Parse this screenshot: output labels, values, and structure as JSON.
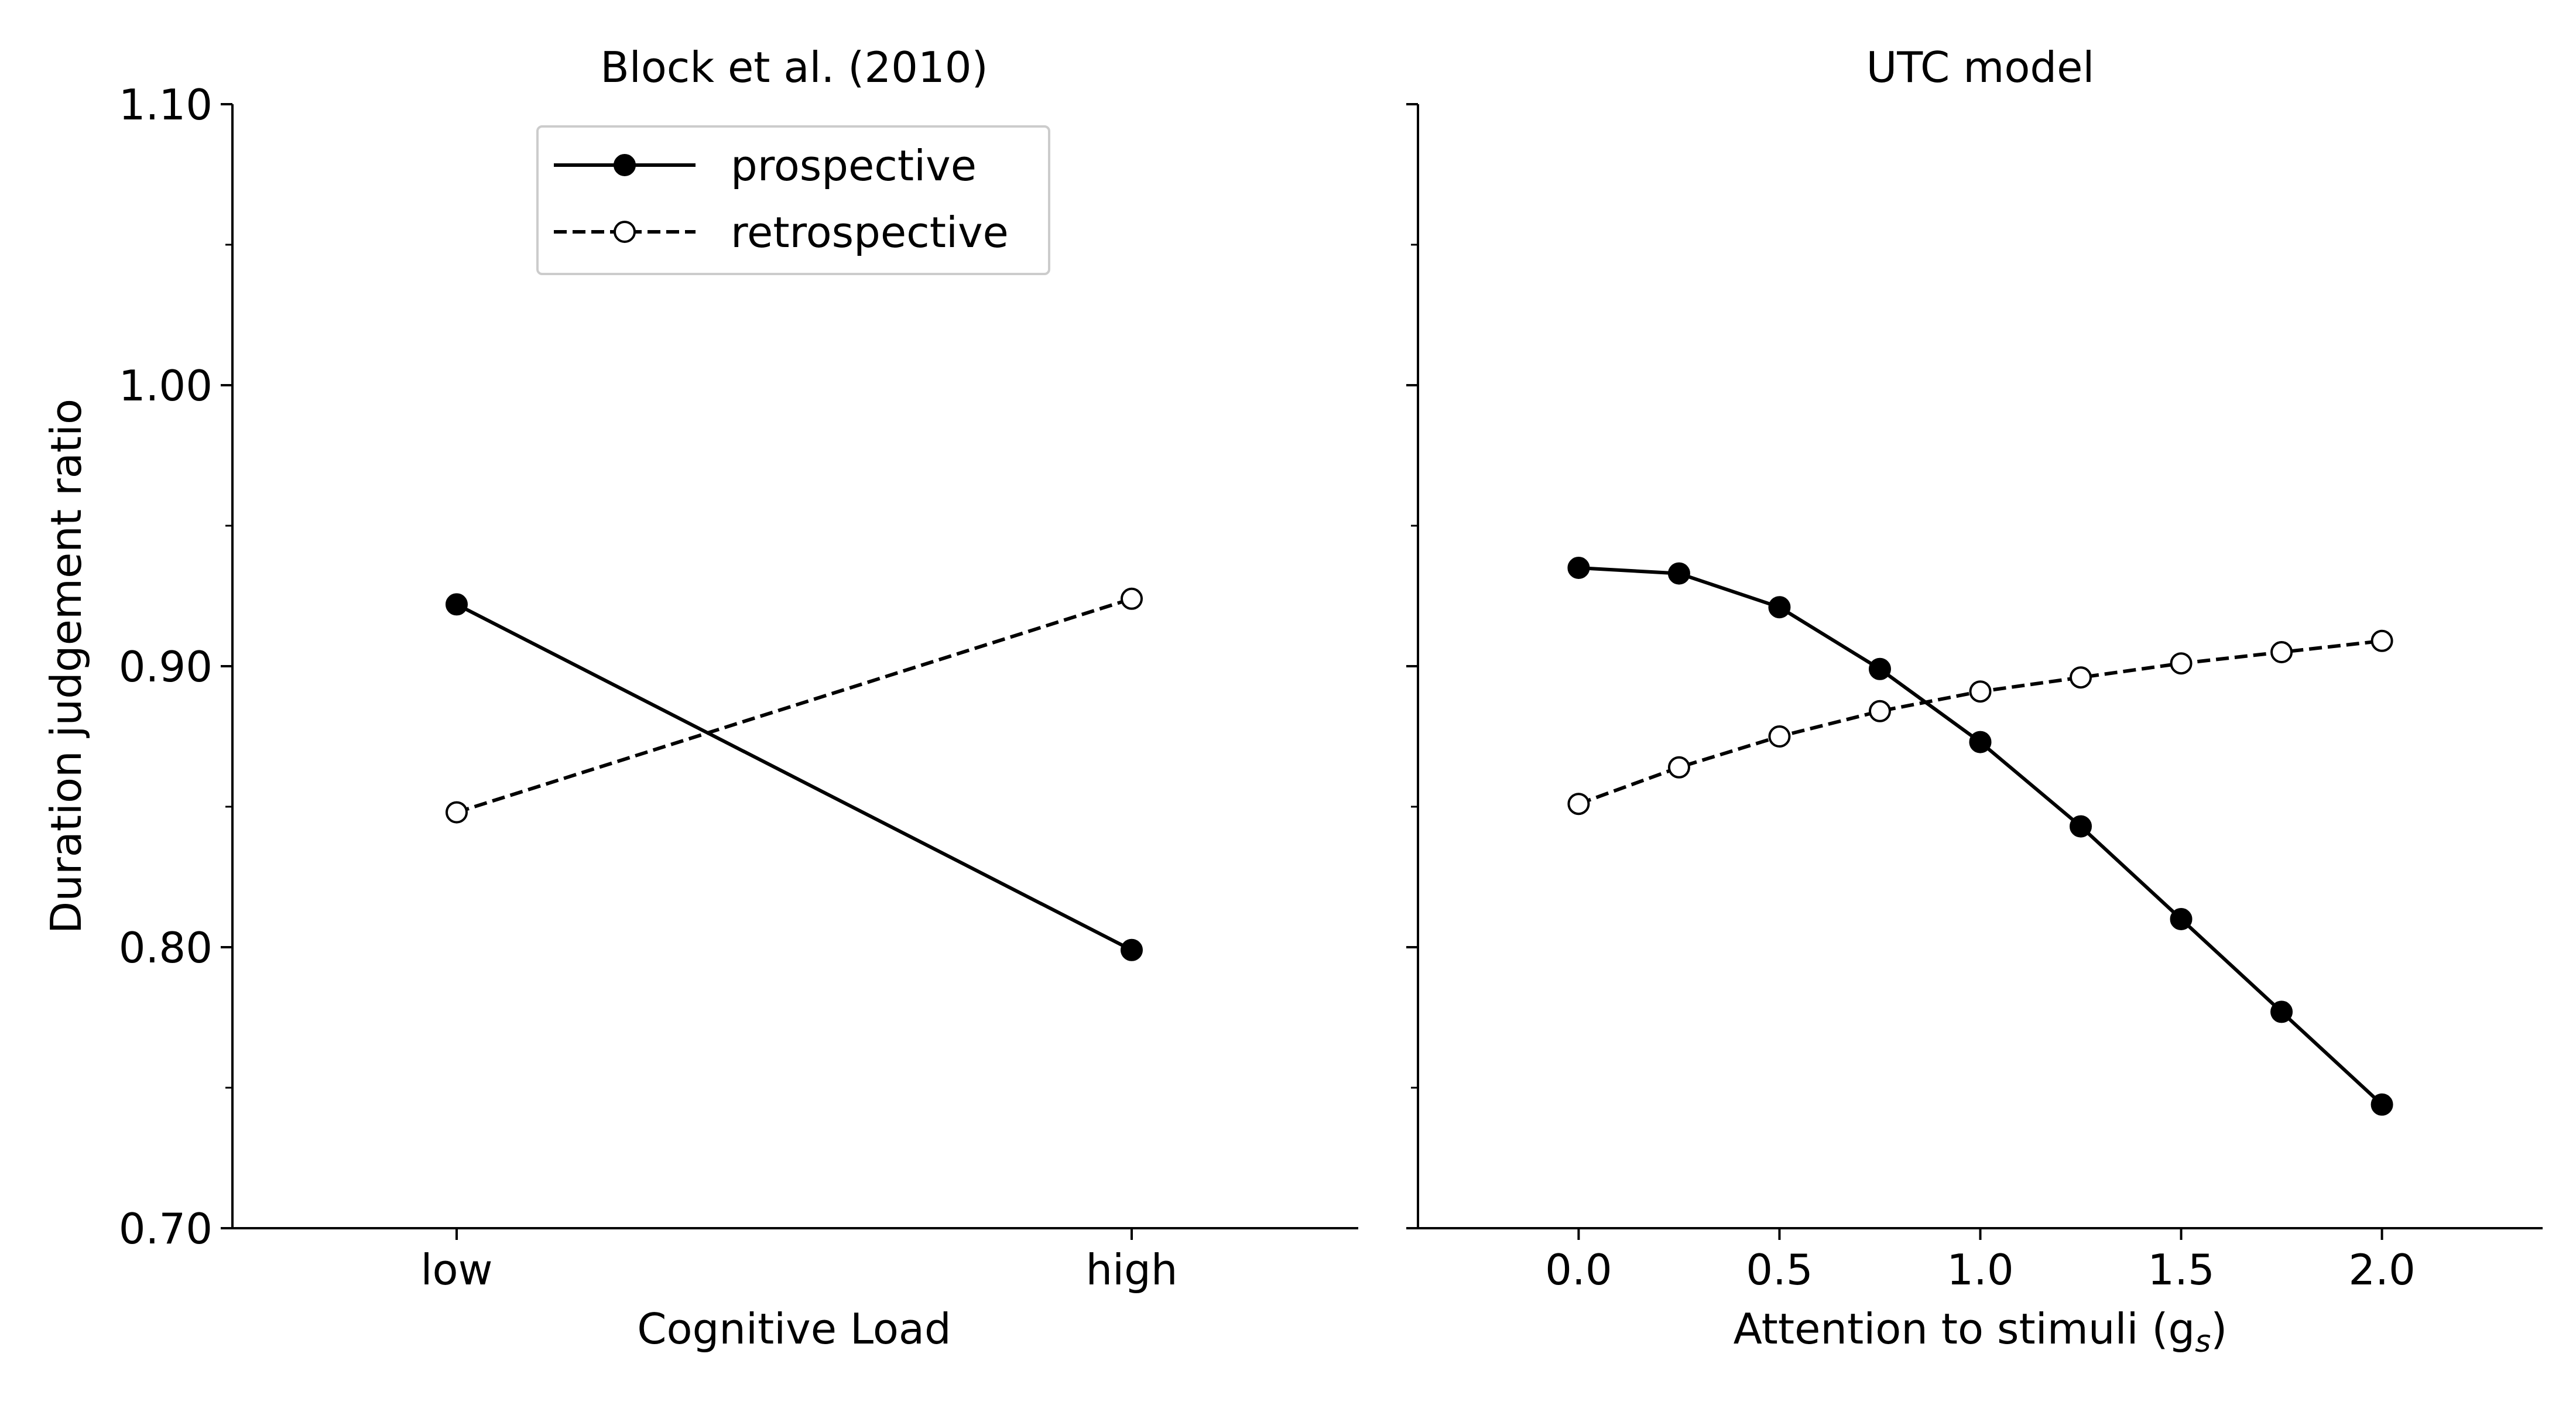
{
  "chart_data": [
    {
      "type": "line",
      "title": "Block et al. (2010)",
      "xlabel": "Cognitive Load",
      "ylabel": "Duration judgement ratio",
      "categories": [
        "low",
        "high"
      ],
      "ylim": [
        0.7,
        1.1
      ],
      "yticks": [
        "0.70",
        "0.80",
        "0.90",
        "1.00",
        "1.10"
      ],
      "series": [
        {
          "name": "prospective",
          "values": [
            0.922,
            0.799
          ],
          "style": "solid",
          "marker": "filled"
        },
        {
          "name": "retrospective",
          "values": [
            0.848,
            0.924
          ],
          "style": "dashed",
          "marker": "open"
        }
      ],
      "legend": {
        "position": "top-center"
      },
      "grid": false
    },
    {
      "type": "line",
      "title": "UTC model",
      "xlabel": "Attention to stimuli (g",
      "xlabel_sub": "s",
      "xlabel_end": ")",
      "ylabel": "",
      "x": [
        0.0,
        0.25,
        0.5,
        0.75,
        1.0,
        1.25,
        1.5,
        1.75,
        2.0
      ],
      "xlim": [
        -0.4,
        2.4
      ],
      "xticks": [
        "0.0",
        "0.5",
        "1.0",
        "1.5",
        "2.0"
      ],
      "ylim": [
        0.7,
        1.1
      ],
      "series": [
        {
          "name": "prospective",
          "values": [
            0.935,
            0.933,
            0.921,
            0.899,
            0.873,
            0.843,
            0.81,
            0.777,
            0.744
          ],
          "style": "solid",
          "marker": "filled"
        },
        {
          "name": "retrospective",
          "values": [
            0.851,
            0.864,
            0.875,
            0.884,
            0.891,
            0.896,
            0.901,
            0.905,
            0.909
          ],
          "style": "dashed",
          "marker": "open"
        }
      ],
      "grid": false
    }
  ],
  "colors": {
    "line": "#000000",
    "background": "#ffffff",
    "legend_border": "#cccccc"
  }
}
